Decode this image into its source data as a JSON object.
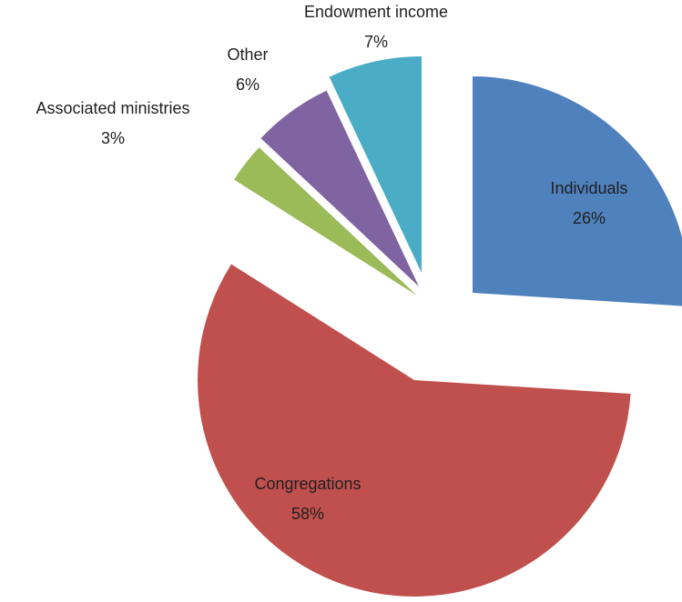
{
  "chart_data": {
    "type": "pie",
    "title": "",
    "slices": [
      {
        "label": "Individuals",
        "value": 26,
        "value_label": "26%",
        "color": "#4f81bd"
      },
      {
        "label": "Congregations",
        "value": 58,
        "value_label": "58%",
        "color": "#c0504d"
      },
      {
        "label": "Associated ministries",
        "value": 3,
        "value_label": "3%",
        "color": "#9bbb59"
      },
      {
        "label": "Other",
        "value": 6,
        "value_label": "6%",
        "color": "#8064a2"
      },
      {
        "label": "Endowment income",
        "value": 7,
        "value_label": "7%",
        "color": "#4bacc6"
      }
    ],
    "exploded": true,
    "legend": "none"
  }
}
